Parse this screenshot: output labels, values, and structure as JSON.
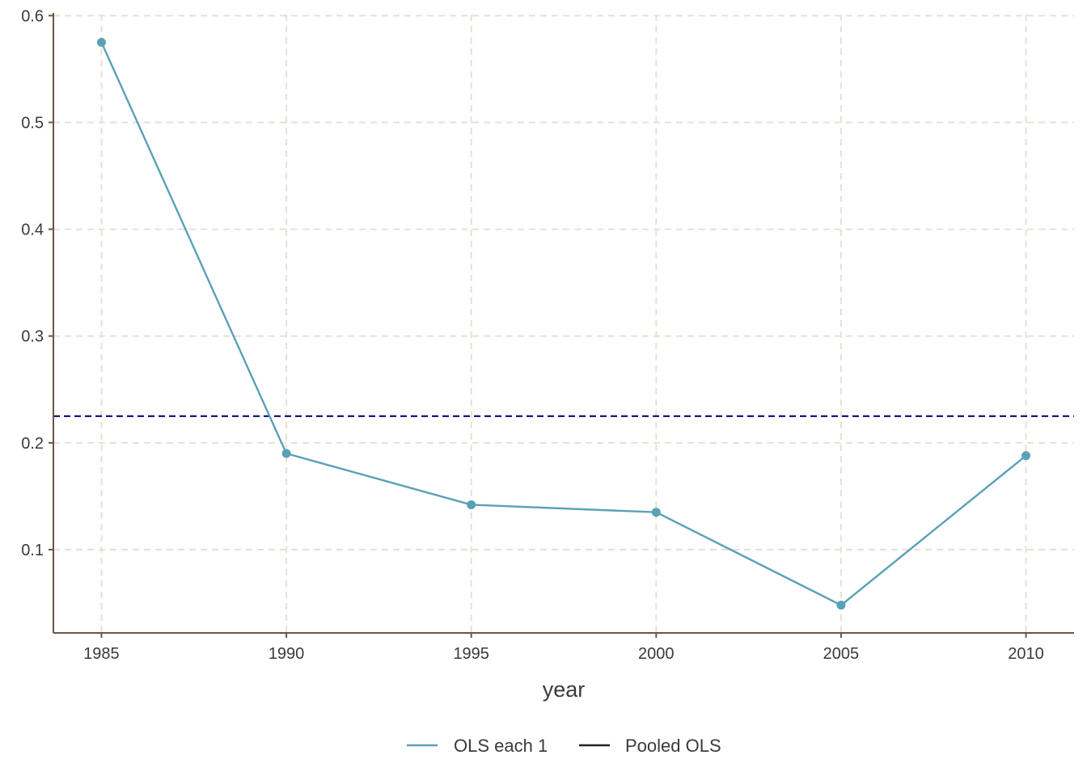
{
  "chart_data": {
    "type": "line",
    "title": "",
    "xlabel": "year",
    "ylabel": "",
    "x": [
      1985,
      1990,
      1995,
      2000,
      2005,
      2010
    ],
    "xlim": [
      1983.7,
      2011.3
    ],
    "ylim": [
      0.022,
      0.601
    ],
    "xticks": [
      1985,
      1990,
      1995,
      2000,
      2005,
      2010
    ],
    "yticks": [
      0.1,
      0.2,
      0.3,
      0.4,
      0.5,
      0.6
    ],
    "ytick_labels": [
      "0.1",
      "0.2",
      "0.3",
      "0.4",
      "0.5",
      "0.6"
    ],
    "grid": true,
    "legend_position": "bottom",
    "series": [
      {
        "name": "OLS each 1",
        "kind": "line+points",
        "color": "#5aa1b7",
        "values": [
          0.575,
          0.19,
          0.142,
          0.135,
          0.048,
          0.188
        ]
      },
      {
        "name": "Pooled OLS",
        "kind": "hline",
        "style": "dashed",
        "color": "#0a0a78",
        "legend_color": "#222222",
        "value": 0.225
      }
    ],
    "colors": {
      "axis": "#6b5641",
      "grid": "#eadfd3",
      "text": "#3a3a3a"
    }
  }
}
